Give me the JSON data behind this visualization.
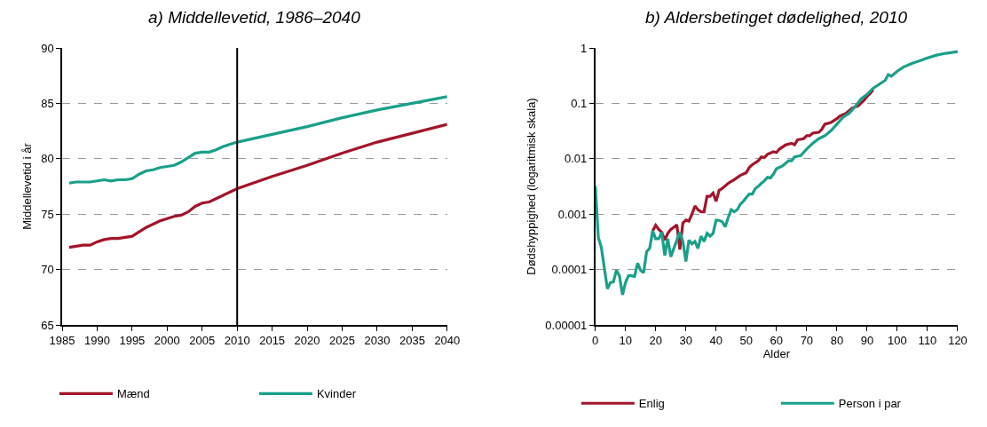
{
  "chart_data": [
    {
      "type": "line",
      "title": "a) Middellevetid, 1986–2040",
      "ylabel": "Middellevetid i år",
      "xlim": [
        1985,
        2040
      ],
      "xticks": [
        1985,
        1990,
        1995,
        2000,
        2005,
        2010,
        2015,
        2020,
        2025,
        2030,
        2035,
        2040
      ],
      "ylim": [
        65,
        90
      ],
      "yticks": [
        65,
        70,
        75,
        80,
        85,
        90
      ],
      "grid": "y",
      "legend": "bottom",
      "marker": "none",
      "line_style": "solid",
      "x": [
        1986,
        1987,
        1988,
        1989,
        1990,
        1991,
        1992,
        1993,
        1994,
        1995,
        1996,
        1997,
        1998,
        1999,
        2000,
        2001,
        2002,
        2003,
        2004,
        2005,
        2006,
        2007,
        2008,
        2009,
        2010,
        2015,
        2020,
        2025,
        2030,
        2035,
        2040
      ],
      "series": [
        {
          "name": "Mænd",
          "color": "#a3152a",
          "values": [
            72.0,
            72.1,
            72.2,
            72.2,
            72.5,
            72.7,
            72.8,
            72.8,
            72.9,
            73.0,
            73.4,
            73.8,
            74.1,
            74.4,
            74.6,
            74.8,
            74.9,
            75.2,
            75.7,
            76.0,
            76.1,
            76.4,
            76.7,
            77.0,
            77.3,
            78.4,
            79.4,
            80.5,
            81.5,
            82.3,
            83.1
          ]
        },
        {
          "name": "Kvinder",
          "color": "#1aa08a",
          "values": [
            77.8,
            77.9,
            77.9,
            77.9,
            78.0,
            78.1,
            78.0,
            78.1,
            78.1,
            78.2,
            78.6,
            78.9,
            79.0,
            79.2,
            79.3,
            79.4,
            79.7,
            80.1,
            80.5,
            80.6,
            80.6,
            80.8,
            81.1,
            81.3,
            81.5,
            82.2,
            82.9,
            83.7,
            84.4,
            85.0,
            85.6
          ]
        }
      ],
      "ref_lines": [
        {
          "axis": "x",
          "value": 2010,
          "color": "#000000",
          "line_style": "solid"
        }
      ]
    },
    {
      "type": "line",
      "title": "b) Aldersbetinget dødelighed, 2010",
      "xlabel": "Alder",
      "ylabel": "Dødshyppighed (logaritmisk skala)",
      "xlim": [
        0,
        120
      ],
      "xticks": [
        0,
        10,
        20,
        30,
        40,
        50,
        60,
        70,
        80,
        90,
        100,
        110,
        120
      ],
      "ylim": [
        1e-05,
        1
      ],
      "yticks": [
        {
          "value": 1e-05,
          "label": "0.00001"
        },
        0.0001,
        0.001,
        0.01,
        0.1,
        1
      ],
      "log": "y",
      "grid": "y",
      "legend": "bottom",
      "marker": "none",
      "line_style": "solid",
      "series": [
        {
          "name": "Enlig",
          "color": "#a3152a",
          "x": [
            19,
            20,
            21,
            22,
            23,
            24,
            25,
            26,
            27,
            28,
            29,
            30,
            31,
            32,
            33,
            34,
            35,
            36,
            37,
            38,
            39,
            40,
            41,
            42,
            44,
            46,
            48,
            50,
            51,
            52,
            54,
            55,
            56,
            57,
            59,
            60,
            61,
            63,
            65,
            66,
            67,
            69,
            70,
            71,
            72,
            74,
            75,
            76,
            78,
            80,
            81,
            83,
            85,
            87,
            89,
            90,
            91,
            92
          ],
          "values": [
            0.0005,
            0.00063,
            0.00053,
            0.00047,
            0.00034,
            0.00045,
            0.00053,
            0.00058,
            0.00064,
            0.00023,
            0.00069,
            0.00078,
            0.00075,
            0.001,
            0.0014,
            0.0012,
            0.0011,
            0.0011,
            0.0021,
            0.0021,
            0.0024,
            0.0017,
            0.0027,
            0.0029,
            0.0036,
            0.0042,
            0.005,
            0.0056,
            0.007,
            0.0078,
            0.0092,
            0.0108,
            0.0105,
            0.012,
            0.0134,
            0.013,
            0.015,
            0.0177,
            0.019,
            0.018,
            0.022,
            0.023,
            0.026,
            0.026,
            0.029,
            0.03,
            0.034,
            0.042,
            0.045,
            0.053,
            0.059,
            0.066,
            0.082,
            0.09,
            0.114,
            0.134,
            0.15,
            0.176
          ]
        },
        {
          "name": "Person i par",
          "color": "#1aa08a",
          "x": [
            0,
            1,
            2,
            4,
            5,
            6,
            7,
            8,
            9,
            10,
            11,
            12,
            13,
            14,
            15,
            16,
            17,
            18,
            19,
            20,
            21,
            22,
            23,
            24,
            25,
            26,
            27,
            28,
            29,
            30,
            31,
            32,
            33,
            34,
            35,
            36,
            37,
            38,
            39,
            40,
            41,
            42,
            43,
            44,
            45,
            46,
            47,
            48,
            49,
            50,
            51,
            52,
            53,
            54,
            55,
            56,
            57,
            58,
            59,
            60,
            62,
            64,
            65,
            66,
            68,
            70,
            72,
            74,
            76,
            78,
            80,
            82,
            84,
            86,
            88,
            90,
            92,
            94,
            96,
            97,
            98,
            100,
            102,
            105,
            108,
            110,
            113,
            116,
            120
          ],
          "values": [
            0.0032,
            0.00038,
            0.00025,
            4.5e-05,
            5.8e-05,
            6e-05,
            9.7e-05,
            7.7e-05,
            3.5e-05,
            5.8e-05,
            7.7e-05,
            7.7e-05,
            7.5e-05,
            0.00013,
            9.7e-05,
            8.7e-05,
            0.00021,
            0.00024,
            0.0005,
            0.00036,
            0.00036,
            0.00047,
            0.00018,
            0.00036,
            0.00017,
            0.00024,
            0.00034,
            0.00047,
            0.00032,
            0.00014,
            0.00034,
            0.00029,
            0.00032,
            0.00024,
            0.0004,
            0.00032,
            0.00045,
            0.0004,
            0.00045,
            0.00078,
            0.00077,
            0.00073,
            0.00059,
            0.00086,
            0.0012,
            0.0011,
            0.0012,
            0.0015,
            0.0017,
            0.002,
            0.0023,
            0.0023,
            0.0029,
            0.0032,
            0.0036,
            0.004,
            0.0046,
            0.0045,
            0.0053,
            0.0066,
            0.0074,
            0.0092,
            0.0092,
            0.0108,
            0.0114,
            0.015,
            0.019,
            0.023,
            0.026,
            0.032,
            0.042,
            0.056,
            0.066,
            0.087,
            0.12,
            0.145,
            0.187,
            0.22,
            0.26,
            0.33,
            0.31,
            0.38,
            0.45,
            0.53,
            0.6,
            0.66,
            0.74,
            0.8,
            0.86
          ]
        }
      ]
    }
  ]
}
